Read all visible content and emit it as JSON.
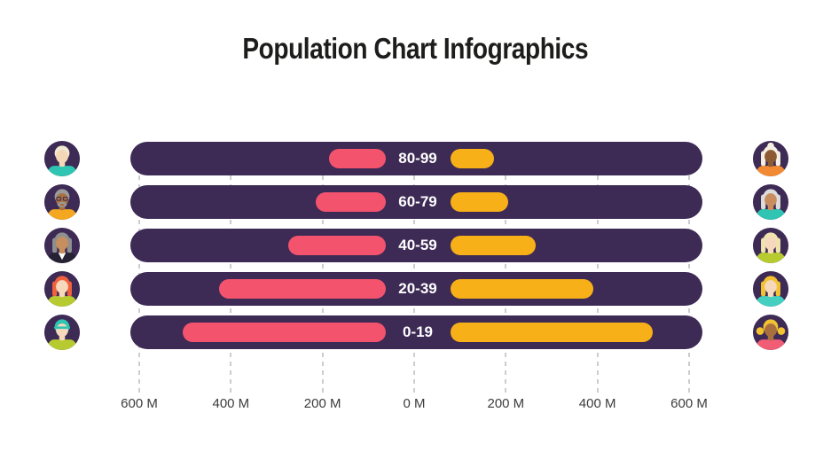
{
  "title": "Population Chart Infographics",
  "colors": {
    "background": "#ffffff",
    "title_text": "#1d1d1b",
    "bar_bg": "#3d2a55",
    "left_bar": "#f4536e",
    "right_bar": "#f8b019",
    "bar_label_text": "#ffffff",
    "grid": "#cfcad3",
    "axis_text": "#3c3c3c",
    "avatar_bg": "#3d2a55"
  },
  "chart_data": {
    "type": "bar",
    "variant": "horizontal-population-pyramid",
    "title": "Population Chart Infographics",
    "categories": [
      "80-99",
      "60-79",
      "40-59",
      "20-39",
      "0-19"
    ],
    "series": [
      {
        "name": "left-pink",
        "color": "#f4536e",
        "values": [
          185,
          215,
          275,
          425,
          505
        ]
      },
      {
        "name": "right-yellow",
        "color": "#f8b019",
        "values": [
          175,
          205,
          265,
          390,
          520
        ]
      }
    ],
    "unit": "millions of people",
    "x_ticks": {
      "values": [
        -600,
        -400,
        -200,
        0,
        200,
        400,
        600
      ],
      "labels": [
        "600 M",
        "400 M",
        "200 M",
        "0 M",
        "200 M",
        "400 M",
        "600 M"
      ]
    },
    "xlim": [
      -625,
      630
    ],
    "grid": "vertical-dashed",
    "legend": "none"
  },
  "avatars": {
    "left": [
      {
        "name": "elderly-person-white-hair-teal-shirt",
        "skin": "#f3d7b7",
        "hair": "#f0e9d3",
        "shirt": "#2fc5b2",
        "style": "short"
      },
      {
        "name": "older-man-glasses-beard-orange-shirt",
        "skin": "#a8713f",
        "hair": "#9b9b9b",
        "shirt": "#f3a81f",
        "style": "beard"
      },
      {
        "name": "older-woman-gray-hair-black-jacket",
        "skin": "#c78e5e",
        "hair": "#8f8f8f",
        "shirt": "#272233",
        "style": "long",
        "vneck": true
      },
      {
        "name": "woman-red-hair-green-shirt",
        "skin": "#f6d8bd",
        "hair": "#f2613d",
        "shirt": "#b7cb31",
        "style": "long"
      },
      {
        "name": "person-teal-cap-green-shirt",
        "skin": "#f6d8bd",
        "hair": "#2fc5b2",
        "shirt": "#b7cb31",
        "style": "cap"
      }
    ],
    "right": [
      {
        "name": "elderly-woman-white-hair-orange-shirt",
        "skin": "#8c5a33",
        "hair": "#f4efe2",
        "shirt": "#f28a33",
        "style": "long",
        "bun": true
      },
      {
        "name": "elderly-woman-gray-hair-teal-shirt",
        "skin": "#c98d60",
        "hair": "#dcdcdc",
        "shirt": "#2fc5b2",
        "style": "long"
      },
      {
        "name": "woman-blonde-hair-green-shirt",
        "skin": "#f6d8bd",
        "hair": "#efe3ae",
        "shirt": "#b7cb31",
        "style": "long"
      },
      {
        "name": "woman-blonde-hair-teal-shirt",
        "skin": "#f6d8bd",
        "hair": "#f2c230",
        "shirt": "#44cfc0",
        "style": "long"
      },
      {
        "name": "girl-pigtails-pink-shirt",
        "skin": "#a9703f",
        "hair": "#f2c230",
        "shirt": "#f05d75",
        "style": "pigtails"
      }
    ]
  }
}
